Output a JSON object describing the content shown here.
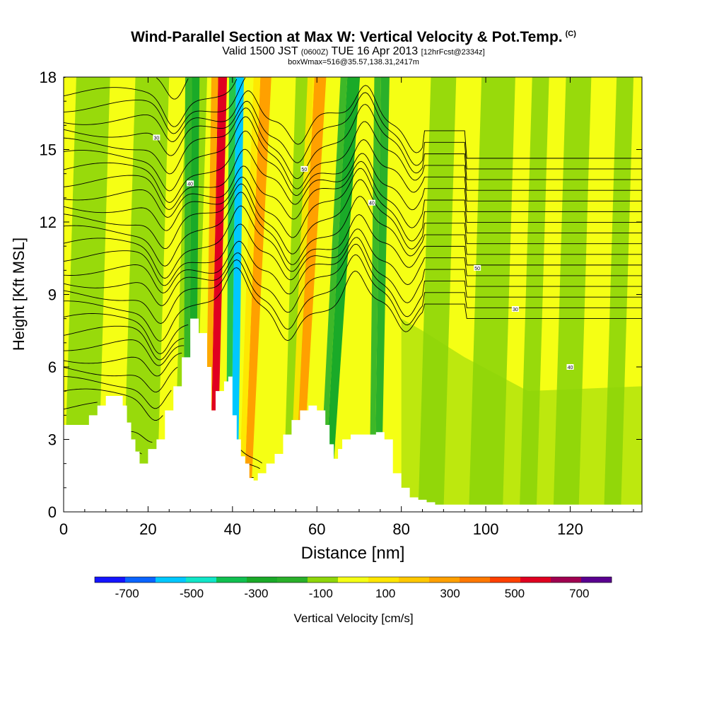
{
  "header": {
    "title": "Wind-Parallel Section at Max W: Vertical Velocity & Pot.Temp.",
    "copyright": "(C)",
    "valid_prefix": "Valid 1500 JST",
    "valid_utc": "(0600Z)",
    "valid_date": "TUE 16 Apr 2013",
    "forecast": "[12hrFcst@2334z]",
    "box_info": "boxWmax=516@35.57,138.31,2417m"
  },
  "chart_data": {
    "type": "heatmap",
    "title": "Wind-Parallel Section at Max W: Vertical Velocity & Pot.Temp.",
    "xlabel": "Distance [nm]",
    "ylabel": "Height [Kft MSL]",
    "xlim": [
      0,
      137
    ],
    "ylim": [
      0,
      18
    ],
    "x_ticks": [
      0,
      20,
      40,
      60,
      80,
      100,
      120
    ],
    "y_ticks": [
      0,
      3,
      6,
      9,
      12,
      15,
      18
    ],
    "terrain": {
      "x": [
        0,
        4,
        6,
        8,
        10,
        12,
        14,
        15,
        16,
        17,
        18,
        20,
        22,
        24,
        26,
        28,
        30,
        32,
        34,
        35,
        36,
        38,
        39,
        40,
        41,
        42,
        43,
        44,
        45,
        46,
        48,
        50,
        52,
        54,
        56,
        58,
        60,
        62,
        63,
        64,
        65,
        66,
        68,
        70,
        72,
        74,
        76,
        78,
        80,
        82,
        84,
        86,
        88,
        90,
        100,
        110,
        120,
        130,
        137
      ],
      "height": [
        3.6,
        3.6,
        4.0,
        4.4,
        4.8,
        4.8,
        4.4,
        3.7,
        3.0,
        2.5,
        2.0,
        2.6,
        3.0,
        4.2,
        5.2,
        6.4,
        8.0,
        7.4,
        6.0,
        4.2,
        5.0,
        5.4,
        5.6,
        4.0,
        3.0,
        2.3,
        2.0,
        1.4,
        1.3,
        1.6,
        2.0,
        2.4,
        3.2,
        3.8,
        4.2,
        4.4,
        4.2,
        3.6,
        2.8,
        2.2,
        2.6,
        3.0,
        3.2,
        3.2,
        3.2,
        3.3,
        3.0,
        1.6,
        1.0,
        0.6,
        0.5,
        0.4,
        0.3,
        0.3,
        0.3,
        0.3,
        0.3,
        0.3,
        0.3
      ]
    },
    "vertical_velocity_bands": [
      {
        "x_bottom": 35,
        "x_top": 37.5,
        "value": 600
      },
      {
        "x_bottom": 40,
        "x_top": 41.5,
        "value": -600
      },
      {
        "x_bottom": 43,
        "x_top": 48,
        "value": 300
      },
      {
        "x_bottom": 55,
        "x_top": 61,
        "value": 300
      },
      {
        "x_bottom": 62,
        "x_top": 69,
        "value": -300
      },
      {
        "x_bottom": 74,
        "x_top": 76,
        "value": -200
      },
      {
        "x_bottom": 30,
        "x_top": 31,
        "value": -300
      }
    ],
    "color_scale": {
      "label": "Vertical Velocity [cm/s]",
      "tick_labels": [
        "-700",
        "-500",
        "-300",
        "-100",
        "100",
        "300",
        "500",
        "700"
      ],
      "tick_values": [
        -700,
        -500,
        -300,
        -100,
        100,
        300,
        500,
        700
      ],
      "bounds": [
        -800,
        -700,
        -600,
        -500,
        -400,
        -300,
        -200,
        -100,
        0,
        100,
        200,
        300,
        400,
        500,
        600,
        700,
        800
      ],
      "colors": [
        "#1414ff",
        "#0a64ff",
        "#00c8ff",
        "#10e6c8",
        "#10c050",
        "#1aaa28",
        "#2ab02a",
        "#8ed60a",
        "#f5ff14",
        "#ffe600",
        "#ffc800",
        "#ffa000",
        "#ff7800",
        "#ff4000",
        "#e00020",
        "#a00050",
        "#5a0090"
      ]
    },
    "isentrope_labels": [
      "30",
      "40",
      "50"
    ]
  }
}
